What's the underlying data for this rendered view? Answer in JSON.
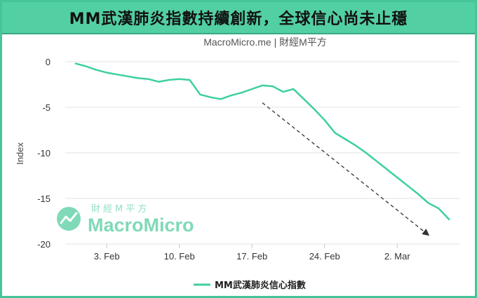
{
  "header": {
    "title": "MM武漢肺炎指數持續創新，全球信心尚未止穩"
  },
  "watermark": {
    "cn": "財經M平方",
    "en": "MacroMicro"
  },
  "colors": {
    "line": "#3ecfa0",
    "banner": "#52cfa3",
    "grid": "#e3e3e3",
    "arrow": "#333333"
  },
  "chart_data": {
    "type": "line",
    "title": "MacroMicro.me | 財經M平方",
    "ylabel": "Index",
    "xlabel": "",
    "ylim": [
      -20,
      0
    ],
    "xlim": [
      "2020-01-30",
      "2020-03-08"
    ],
    "y_ticks": [
      0,
      -5,
      -10,
      -15,
      -20
    ],
    "x_ticks": [
      {
        "date": "2020-02-03",
        "label": "3. Feb"
      },
      {
        "date": "2020-02-10",
        "label": "10. Feb"
      },
      {
        "date": "2020-02-17",
        "label": "17. Feb"
      },
      {
        "date": "2020-02-24",
        "label": "24. Feb"
      },
      {
        "date": "2020-03-02",
        "label": "2. Mar"
      }
    ],
    "grid": true,
    "legend_position": "bottom-center",
    "series": [
      {
        "name": "MM武漢肺炎信心指數",
        "x": [
          "2020-01-31",
          "2020-02-01",
          "2020-02-02",
          "2020-02-03",
          "2020-02-04",
          "2020-02-05",
          "2020-02-06",
          "2020-02-07",
          "2020-02-08",
          "2020-02-09",
          "2020-02-10",
          "2020-02-11",
          "2020-02-12",
          "2020-02-13",
          "2020-02-14",
          "2020-02-15",
          "2020-02-16",
          "2020-02-17",
          "2020-02-18",
          "2020-02-19",
          "2020-02-20",
          "2020-02-21",
          "2020-02-22",
          "2020-02-23",
          "2020-02-24",
          "2020-02-25",
          "2020-02-26",
          "2020-02-27",
          "2020-02-28",
          "2020-02-29",
          "2020-03-01",
          "2020-03-02",
          "2020-03-03",
          "2020-03-04",
          "2020-03-05",
          "2020-03-06",
          "2020-03-07"
        ],
        "values": [
          -0.2,
          -0.5,
          -0.9,
          -1.2,
          -1.4,
          -1.6,
          -1.8,
          -1.9,
          -2.2,
          -2.0,
          -1.9,
          -2.0,
          -3.6,
          -3.9,
          -4.1,
          -3.7,
          -3.4,
          -3.0,
          -2.6,
          -2.7,
          -3.3,
          -3.0,
          -4.1,
          -5.2,
          -6.4,
          -7.8,
          -8.5,
          -9.2,
          -10.0,
          -10.9,
          -11.8,
          -12.7,
          -13.6,
          -14.5,
          -15.5,
          -16.1,
          -17.3
        ]
      }
    ],
    "annotations": [
      {
        "type": "arrow",
        "style": "dashed",
        "from": {
          "x": "2020-02-18",
          "y": -4.5
        },
        "to": {
          "x": "2020-03-05",
          "y": -19.0
        }
      }
    ]
  }
}
